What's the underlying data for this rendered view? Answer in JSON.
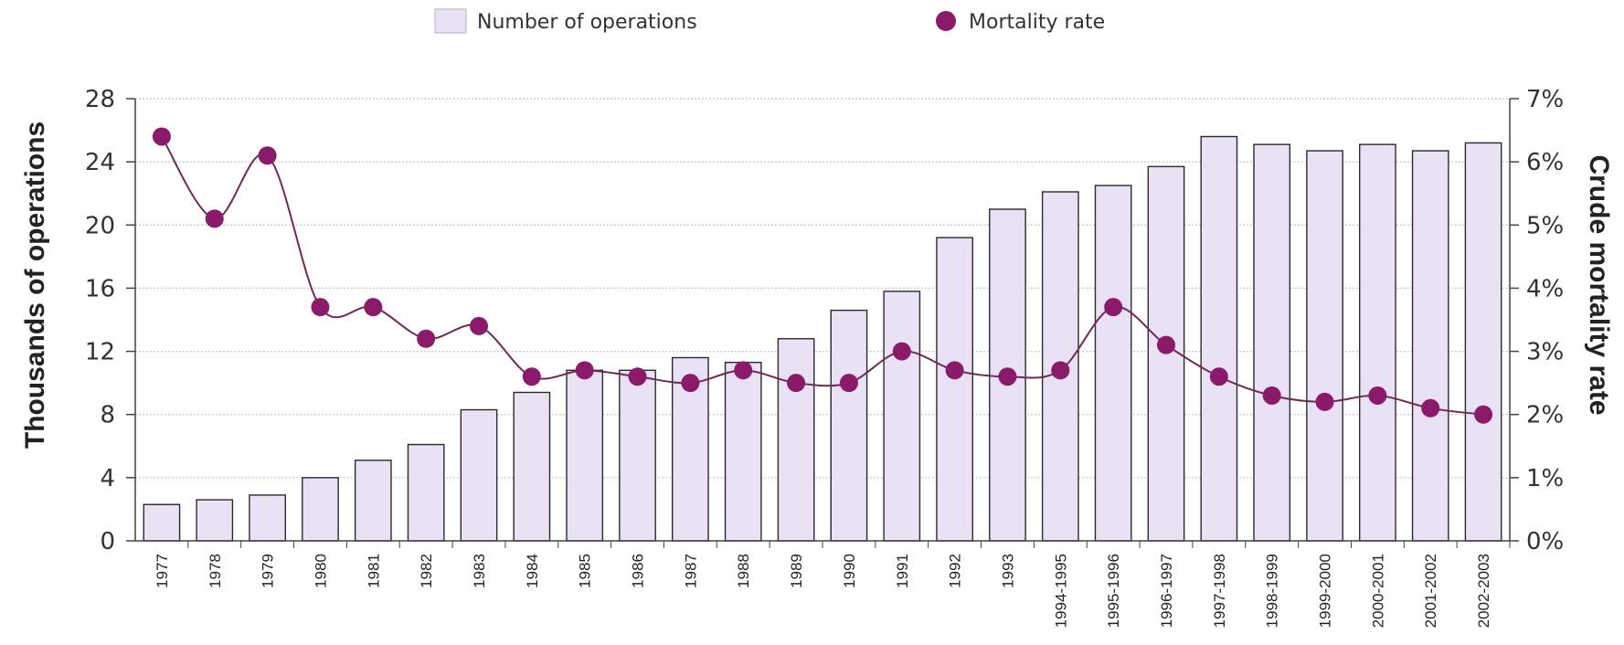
{
  "chart_data": {
    "type": "bar+line",
    "categories": [
      "1977",
      "1978",
      "1979",
      "1980",
      "1981",
      "1982",
      "1983",
      "1984",
      "1985",
      "1986",
      "1987",
      "1988",
      "1989",
      "1990",
      "1991",
      "1992",
      "1993",
      "1994-1995",
      "1995-1996",
      "1996-1997",
      "1997-1998",
      "1998-1999",
      "1999-2000",
      "2000-2001",
      "2001-2002",
      "2002-2003"
    ],
    "series": [
      {
        "name": "Number of operations",
        "kind": "bar",
        "axis": "left",
        "color": "#e8e2f4",
        "values": [
          2.3,
          2.6,
          2.9,
          4.0,
          5.1,
          6.1,
          8.3,
          9.4,
          10.8,
          10.8,
          11.6,
          11.3,
          12.8,
          14.6,
          15.8,
          19.2,
          21.0,
          22.1,
          22.5,
          23.7,
          25.6,
          25.1,
          24.7,
          25.1,
          24.7,
          25.2
        ]
      },
      {
        "name": "Mortality rate",
        "kind": "line",
        "axis": "right",
        "color": "#8b1a6b",
        "values": [
          6.4,
          5.1,
          6.1,
          3.7,
          3.7,
          3.2,
          3.4,
          2.6,
          2.7,
          2.6,
          2.5,
          2.7,
          2.5,
          2.5,
          3.0,
          2.7,
          2.6,
          2.7,
          3.7,
          3.1,
          2.6,
          2.3,
          2.2,
          2.3,
          2.1,
          2.0
        ]
      }
    ],
    "left_axis": {
      "label": "Thousands of operations",
      "ylim": [
        0,
        28
      ],
      "ticks": [
        "0",
        "4",
        "8",
        "12",
        "16",
        "20",
        "24",
        "28"
      ]
    },
    "right_axis": {
      "label": "Crude mortality rate",
      "ylim": [
        0,
        7
      ],
      "ticks": [
        "0%",
        "1%",
        "2%",
        "3%",
        "4%",
        "5%",
        "6%",
        "7%"
      ]
    },
    "grid": true,
    "legend_position": "top"
  }
}
